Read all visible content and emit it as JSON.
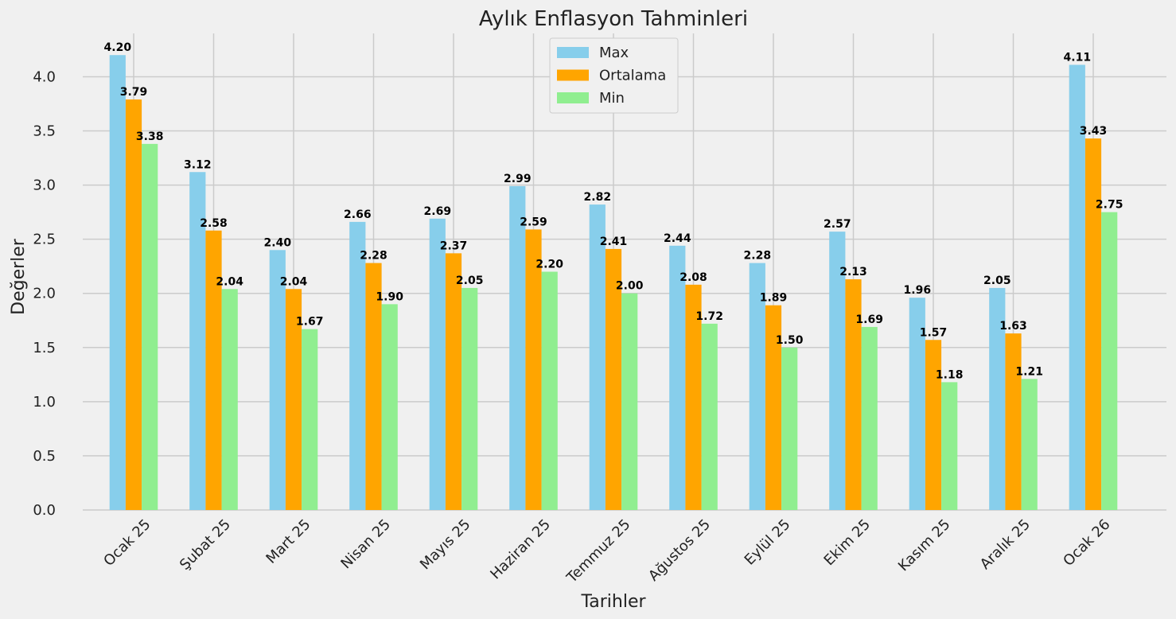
{
  "chart_data": {
    "type": "bar",
    "title": "Aylık Enflasyon Tahminleri",
    "xlabel": "Tarihler",
    "ylabel": "Değerler",
    "ylim": [
      0,
      4.4
    ],
    "yticks": [
      "0.0",
      "0.5",
      "1.0",
      "1.5",
      "2.0",
      "2.5",
      "3.0",
      "3.5",
      "4.0"
    ],
    "grid": true,
    "legend_position": "top-center",
    "categories": [
      "Ocak 25",
      "Şubat 25",
      "Mart 25",
      "Nisan 25",
      "Mayıs 25",
      "Haziran 25",
      "Temmuz 25",
      "Ağustos 25",
      "Eylül 25",
      "Ekim 25",
      "Kasım 25",
      "Aralık 25",
      "Ocak 26"
    ],
    "series": [
      {
        "name": "Max",
        "color": "#87ceeb",
        "values": [
          4.2,
          3.12,
          2.4,
          2.66,
          2.69,
          2.99,
          2.82,
          2.44,
          2.28,
          2.57,
          1.96,
          2.05,
          4.11
        ]
      },
      {
        "name": "Ortalama",
        "color": "#ffa500",
        "values": [
          3.79,
          2.58,
          2.04,
          2.28,
          2.37,
          2.59,
          2.41,
          2.08,
          1.89,
          2.13,
          1.57,
          1.63,
          3.43
        ]
      },
      {
        "name": "Min",
        "color": "#90ee90",
        "values": [
          3.38,
          2.04,
          1.67,
          1.9,
          2.05,
          2.2,
          2.0,
          1.72,
          1.5,
          1.69,
          1.18,
          1.21,
          2.75
        ]
      }
    ]
  }
}
